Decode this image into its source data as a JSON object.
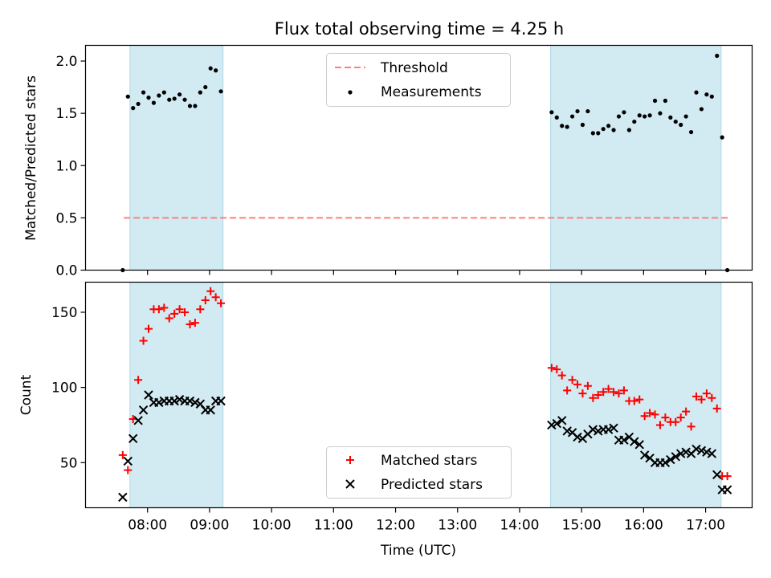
{
  "chart_data": [
    {
      "type": "scatter",
      "title": "Flux total observing time = 4.25 h",
      "xlabel": "",
      "ylabel": "Matched/Predicted stars",
      "ylim": [
        0,
        2.15
      ],
      "yticks": [
        0.0,
        0.5,
        1.0,
        1.5,
        2.0
      ],
      "ytick_labels": [
        "0.0",
        "0.5",
        "1.0",
        "1.5",
        "2.0"
      ],
      "shaded_intervals": [
        [
          "07:43",
          "09:13"
        ],
        [
          "14:30",
          "17:15"
        ]
      ],
      "shade_color": "#add8e6",
      "legend_position": "upper center",
      "series": [
        {
          "name": "Threshold",
          "style": "dashed-line",
          "color": "#ff7f7f",
          "x": [
            "07:37",
            "17:22"
          ],
          "y": [
            0.5,
            0.5
          ]
        },
        {
          "name": "Measurements",
          "style": "dot",
          "color": "#000000",
          "x": [
            "07:36",
            "07:41",
            "07:46",
            "07:51",
            "07:56",
            "08:01",
            "08:06",
            "08:11",
            "08:16",
            "08:21",
            "08:26",
            "08:31",
            "08:36",
            "08:41",
            "08:46",
            "08:51",
            "08:56",
            "09:01",
            "09:06",
            "09:11",
            "14:31",
            "14:36",
            "14:41",
            "14:46",
            "14:51",
            "14:56",
            "15:01",
            "15:06",
            "15:11",
            "15:16",
            "15:21",
            "15:26",
            "15:31",
            "15:36",
            "15:41",
            "15:46",
            "15:51",
            "15:56",
            "16:01",
            "16:06",
            "16:11",
            "16:16",
            "16:21",
            "16:26",
            "16:31",
            "16:36",
            "16:41",
            "16:46",
            "16:51",
            "16:56",
            "17:01",
            "17:06",
            "17:11",
            "17:16",
            "17:21"
          ],
          "y": [
            0.0,
            1.66,
            1.55,
            1.59,
            1.7,
            1.65,
            1.6,
            1.67,
            1.7,
            1.63,
            1.64,
            1.68,
            1.63,
            1.57,
            1.57,
            1.7,
            1.75,
            1.93,
            1.91,
            1.71,
            1.51,
            1.46,
            1.38,
            1.37,
            1.47,
            1.52,
            1.39,
            1.52,
            1.31,
            1.31,
            1.35,
            1.38,
            1.34,
            1.47,
            1.51,
            1.34,
            1.42,
            1.48,
            1.47,
            1.48,
            1.62,
            1.5,
            1.62,
            1.46,
            1.42,
            1.39,
            1.47,
            1.32,
            1.7,
            1.54,
            1.68,
            1.66,
            2.05,
            1.27,
            0.0
          ]
        }
      ]
    },
    {
      "type": "scatter",
      "title": "",
      "xlabel": "Time (UTC)",
      "ylabel": "Count",
      "ylim": [
        20,
        170
      ],
      "yticks": [
        50,
        100,
        150
      ],
      "ytick_labels": [
        "50",
        "100",
        "150"
      ],
      "xlim": [
        "07:00",
        "17:45"
      ],
      "xticks": [
        "08:00",
        "09:00",
        "10:00",
        "11:00",
        "12:00",
        "13:00",
        "14:00",
        "15:00",
        "16:00",
        "17:00"
      ],
      "xtick_labels": [
        "08:00",
        "09:00",
        "10:00",
        "11:00",
        "12:00",
        "13:00",
        "14:00",
        "15:00",
        "16:00",
        "17:00"
      ],
      "shaded_intervals": [
        [
          "07:43",
          "09:13"
        ],
        [
          "14:30",
          "17:15"
        ]
      ],
      "shade_color": "#add8e6",
      "legend_position": "lower center",
      "series": [
        {
          "name": "Matched stars",
          "marker": "+",
          "color": "#ff0000",
          "x": [
            "07:36",
            "07:41",
            "07:46",
            "07:51",
            "07:56",
            "08:01",
            "08:06",
            "08:11",
            "08:16",
            "08:21",
            "08:26",
            "08:31",
            "08:36",
            "08:41",
            "08:46",
            "08:51",
            "08:56",
            "09:01",
            "09:06",
            "09:11",
            "14:31",
            "14:36",
            "14:41",
            "14:46",
            "14:51",
            "14:56",
            "15:01",
            "15:06",
            "15:11",
            "15:16",
            "15:21",
            "15:26",
            "15:31",
            "15:36",
            "15:41",
            "15:46",
            "15:51",
            "15:56",
            "16:01",
            "16:06",
            "16:11",
            "16:16",
            "16:21",
            "16:26",
            "16:31",
            "16:36",
            "16:41",
            "16:46",
            "16:51",
            "16:56",
            "17:01",
            "17:06",
            "17:11",
            "17:16",
            "17:21"
          ],
          "y": [
            55,
            45,
            79,
            105,
            131,
            139,
            152,
            152,
            153,
            146,
            149,
            152,
            150,
            142,
            143,
            152,
            158,
            164,
            160,
            156,
            113,
            112,
            108,
            98,
            105,
            102,
            96,
            101,
            93,
            95,
            97,
            99,
            97,
            96,
            98,
            91,
            91,
            92,
            81,
            83,
            82,
            75,
            80,
            77,
            77,
            80,
            84,
            74,
            94,
            92,
            96,
            93,
            86,
            41,
            41
          ]
        },
        {
          "name": "Predicted stars",
          "marker": "x",
          "color": "#000000",
          "x": [
            "07:36",
            "07:41",
            "07:46",
            "07:51",
            "07:56",
            "08:01",
            "08:06",
            "08:11",
            "08:16",
            "08:21",
            "08:26",
            "08:31",
            "08:36",
            "08:41",
            "08:46",
            "08:51",
            "08:56",
            "09:01",
            "09:06",
            "09:11",
            "14:31",
            "14:36",
            "14:41",
            "14:46",
            "14:51",
            "14:56",
            "15:01",
            "15:06",
            "15:11",
            "15:16",
            "15:21",
            "15:26",
            "15:31",
            "15:36",
            "15:41",
            "15:46",
            "15:51",
            "15:56",
            "16:01",
            "16:06",
            "16:11",
            "16:16",
            "16:21",
            "16:26",
            "16:31",
            "16:36",
            "16:41",
            "16:46",
            "16:51",
            "16:56",
            "17:01",
            "17:06",
            "17:11",
            "17:16",
            "17:21"
          ],
          "y": [
            27,
            51,
            66,
            78,
            85,
            95,
            90,
            90,
            91,
            91,
            91,
            92,
            91,
            91,
            90,
            89,
            85,
            85,
            91,
            91,
            75,
            76,
            78,
            71,
            70,
            67,
            66,
            69,
            72,
            71,
            72,
            72,
            73,
            65,
            65,
            67,
            64,
            62,
            55,
            53,
            50,
            50,
            50,
            52,
            54,
            56,
            57,
            56,
            59,
            58,
            57,
            56,
            42,
            32,
            32
          ]
        }
      ]
    }
  ]
}
